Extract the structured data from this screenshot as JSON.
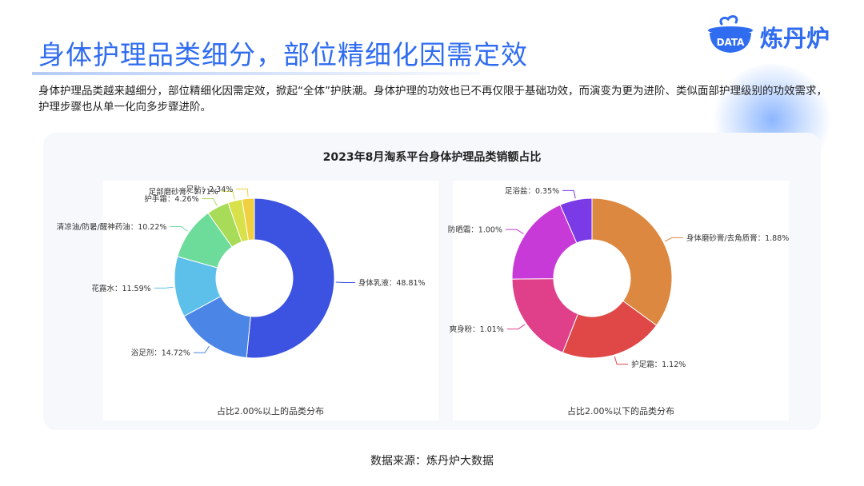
{
  "page": {
    "title": "身体护理品类细分，部位精细化因需定效",
    "intro": "身体护理品类越来越细分，部位精细化因需定效，掀起“全体”护肤潮。身体护理的功效也已不再仅限于基础功效，而演变为更为进阶、类似面部护理级别的功效需求，护理步骤也从单一化向多步骤进阶。",
    "source": "数据来源：炼丹炉大数据"
  },
  "logo": {
    "badge_text": "DATA",
    "name": "炼丹炉",
    "color": "#2f6cf0"
  },
  "chart_data": [
    {
      "type": "pie",
      "title": "2023年8月淘系平台身体护理品类销额占比",
      "subtitle": "占比2.00%以上的品类分布",
      "series": [
        {
          "name": "身体乳液",
          "value": 48.81,
          "label": "身体乳液：48.81%",
          "color": "#3b53e0"
        },
        {
          "name": "浴足剂",
          "value": 14.72,
          "label": "浴足剂：14.72%",
          "color": "#4b86e6"
        },
        {
          "name": "花露水",
          "value": 11.59,
          "label": "花露水：11.59%",
          "color": "#5cc0ea"
        },
        {
          "name": "清凉油/防暑/醒神药油",
          "value": 10.22,
          "label": "清凉油/防暑/醒神药油：10.22%",
          "color": "#6ddc9a"
        },
        {
          "name": "护手霜",
          "value": 4.26,
          "label": "护手霜：4.26%",
          "color": "#a8dc58"
        },
        {
          "name": "足部磨砂膏",
          "value": 2.71,
          "label": "足部磨砂膏：2.71%",
          "color": "#d8e04a"
        },
        {
          "name": "足贴",
          "value": 2.34,
          "label": "足贴：2.34%",
          "color": "#f0d040"
        }
      ]
    },
    {
      "type": "pie",
      "subtitle": "占比2.00%以下的品类分布",
      "series": [
        {
          "name": "身体磨砂膏/去角质膏",
          "value": 1.88,
          "label": "身体磨砂膏/去角质膏：1.88%",
          "color": "#dc8840"
        },
        {
          "name": "护足霜",
          "value": 1.12,
          "label": "护足霜：1.12%",
          "color": "#e04848"
        },
        {
          "name": "爽身粉",
          "value": 1.01,
          "label": "爽身粉：1.01%",
          "color": "#e0408a"
        },
        {
          "name": "防晒霜",
          "value": 1.0,
          "label": "防晒霜：1.00%",
          "color": "#c83ad8"
        },
        {
          "name": "足浴盐",
          "value": 0.35,
          "label": "足浴盐：0.35%",
          "color": "#7a3ae6"
        }
      ]
    }
  ]
}
